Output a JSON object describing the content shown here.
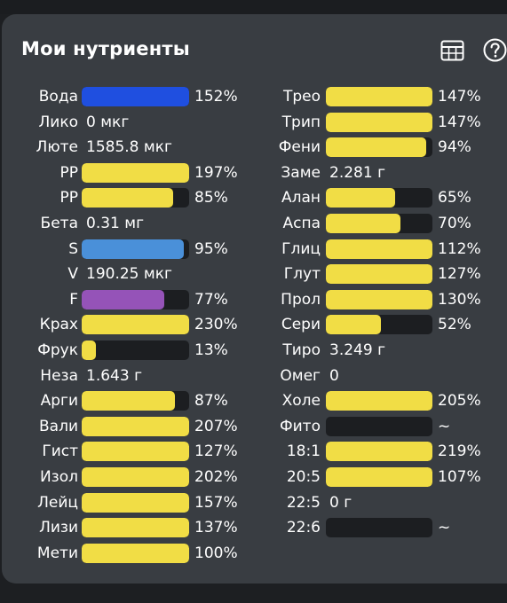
{
  "title": "Мои нутриенты",
  "icons": {
    "table": "table-grid-icon",
    "help": "help-circle-icon"
  },
  "colors": {
    "yellow": "#f1dd45",
    "blue": "#1f4fe0",
    "light_blue": "#4a90d9",
    "purple": "#9553b8",
    "track": "#1c1e21",
    "panel": "#393d42"
  },
  "left_column": [
    {
      "label": "Вода",
      "type": "bar",
      "percent": 152,
      "percent_text": "152%",
      "color": "blue"
    },
    {
      "label": "Лико",
      "type": "text",
      "value": "0 мкг"
    },
    {
      "label": "Люте",
      "type": "text",
      "value": "1585.8 мкг"
    },
    {
      "label": "PP",
      "type": "bar",
      "percent": 197,
      "percent_text": "197%",
      "color": "yellow"
    },
    {
      "label": "PP",
      "type": "bar",
      "percent": 85,
      "percent_text": "85%",
      "color": "yellow"
    },
    {
      "label": "Бета",
      "type": "text",
      "value": "0.31 мг"
    },
    {
      "label": "S",
      "type": "bar",
      "percent": 95,
      "percent_text": "95%",
      "color": "light_blue"
    },
    {
      "label": "V",
      "type": "text",
      "value": "190.25 мкг"
    },
    {
      "label": "F",
      "type": "bar",
      "percent": 77,
      "percent_text": "77%",
      "color": "purple"
    },
    {
      "label": "Крах",
      "type": "bar",
      "percent": 230,
      "percent_text": "230%",
      "color": "yellow"
    },
    {
      "label": "Фрук",
      "type": "bar",
      "percent": 13,
      "percent_text": "13%",
      "color": "yellow"
    },
    {
      "label": "Неза",
      "type": "text",
      "value": "1.643 г"
    },
    {
      "label": "Арги",
      "type": "bar",
      "percent": 87,
      "percent_text": "87%",
      "color": "yellow"
    },
    {
      "label": "Вали",
      "type": "bar",
      "percent": 207,
      "percent_text": "207%",
      "color": "yellow"
    },
    {
      "label": "Гист",
      "type": "bar",
      "percent": 127,
      "percent_text": "127%",
      "color": "yellow"
    },
    {
      "label": "Изол",
      "type": "bar",
      "percent": 202,
      "percent_text": "202%",
      "color": "yellow"
    },
    {
      "label": "Лейц",
      "type": "bar",
      "percent": 157,
      "percent_text": "157%",
      "color": "yellow"
    },
    {
      "label": "Лизи",
      "type": "bar",
      "percent": 137,
      "percent_text": "137%",
      "color": "yellow"
    },
    {
      "label": "Мети",
      "type": "bar",
      "percent": 100,
      "percent_text": "100%",
      "color": "yellow"
    }
  ],
  "right_column": [
    {
      "label": "Трео",
      "type": "bar",
      "percent": 147,
      "percent_text": "147%",
      "color": "yellow"
    },
    {
      "label": "Трип",
      "type": "bar",
      "percent": 147,
      "percent_text": "147%",
      "color": "yellow"
    },
    {
      "label": "Фени",
      "type": "bar",
      "percent": 94,
      "percent_text": "94%",
      "color": "yellow"
    },
    {
      "label": "Заме",
      "type": "text",
      "value": "2.281 г"
    },
    {
      "label": "Алан",
      "type": "bar",
      "percent": 65,
      "percent_text": "65%",
      "color": "yellow"
    },
    {
      "label": "Аспа",
      "type": "bar",
      "percent": 70,
      "percent_text": "70%",
      "color": "yellow"
    },
    {
      "label": "Глиц",
      "type": "bar",
      "percent": 112,
      "percent_text": "112%",
      "color": "yellow"
    },
    {
      "label": "Глут",
      "type": "bar",
      "percent": 127,
      "percent_text": "127%",
      "color": "yellow"
    },
    {
      "label": "Прол",
      "type": "bar",
      "percent": 130,
      "percent_text": "130%",
      "color": "yellow"
    },
    {
      "label": "Сери",
      "type": "bar",
      "percent": 52,
      "percent_text": "52%",
      "color": "yellow"
    },
    {
      "label": "Тиро",
      "type": "text",
      "value": "3.249 г"
    },
    {
      "label": "Омег",
      "type": "text",
      "value": "0"
    },
    {
      "label": "Холе",
      "type": "bar",
      "percent": 205,
      "percent_text": "205%",
      "color": "yellow"
    },
    {
      "label": "Фито",
      "type": "bar",
      "percent": 0,
      "percent_text": "~",
      "color": "yellow"
    },
    {
      "label": "18:1",
      "type": "bar",
      "percent": 219,
      "percent_text": "219%",
      "color": "yellow"
    },
    {
      "label": "20:5",
      "type": "bar",
      "percent": 107,
      "percent_text": "107%",
      "color": "yellow"
    },
    {
      "label": "22:5",
      "type": "text",
      "value": "0 г"
    },
    {
      "label": "22:6",
      "type": "bar",
      "percent": 0,
      "percent_text": "~",
      "color": "yellow"
    }
  ]
}
